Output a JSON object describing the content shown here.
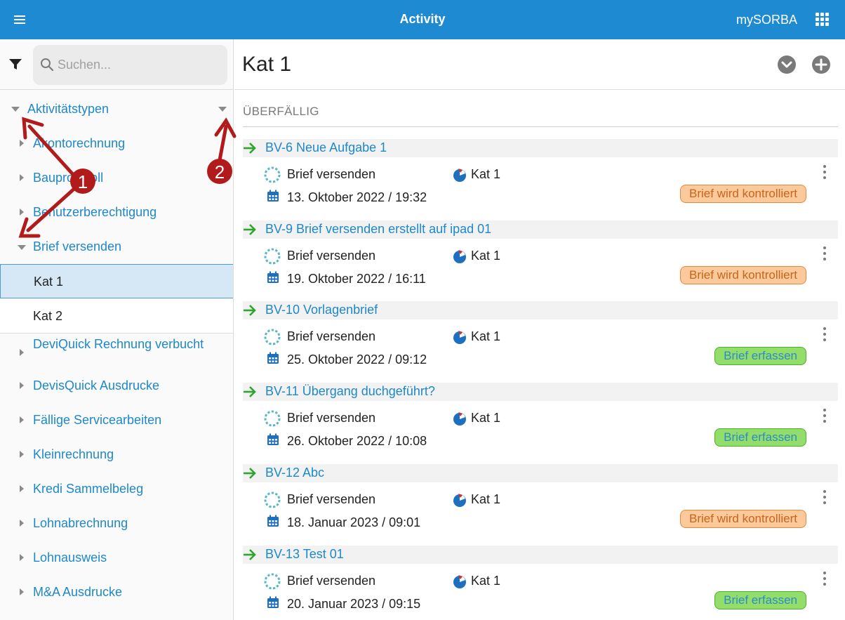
{
  "topbar": {
    "title": "Activity",
    "brand": "mySORBA",
    "menu_icon": "hamburger-icon",
    "apps_icon": "grid-icon"
  },
  "search": {
    "placeholder": "Suchen...",
    "value": ""
  },
  "tree": {
    "root": "Aktivitätstypen",
    "items": [
      {
        "label": "Akontorechnung"
      },
      {
        "label": "Bauprotokoll"
      },
      {
        "label": "Benutzerberechtigung"
      },
      {
        "label": "Brief versenden",
        "expanded": true
      },
      {
        "label": "Kat 1",
        "selected": true
      },
      {
        "label": "Kat 2"
      },
      {
        "label": "DeviQuick Rechnung verbucht"
      },
      {
        "label": "DevisQuick Ausdrucke"
      },
      {
        "label": "Fällige Servicearbeiten"
      },
      {
        "label": "Kleinrechnung"
      },
      {
        "label": "Kredi Sammelbeleg"
      },
      {
        "label": "Lohnabrechnung"
      },
      {
        "label": "Lohnausweis"
      },
      {
        "label": "M&A Ausdrucke"
      }
    ]
  },
  "annotations": {
    "marker1": "1",
    "marker2": "2",
    "color": "#b21b1b"
  },
  "main": {
    "title": "Kat 1",
    "section": "ÜBERFÄLLIG",
    "cards": [
      {
        "title": "BV-6  Neue Aufgabe 1",
        "type": "Brief versenden",
        "kat": "Kat 1",
        "date": "13. Oktober 2022 / 19:32",
        "status": "Brief wird kontrolliert",
        "status_color": "orange"
      },
      {
        "title": "BV-9  Brief versenden erstellt auf ipad 01",
        "type": "Brief versenden",
        "kat": "Kat 1",
        "date": "19. Oktober 2022 / 16:11",
        "status": "Brief wird kontrolliert",
        "status_color": "orange"
      },
      {
        "title": "BV-10  Vorlagenbrief",
        "type": "Brief versenden",
        "kat": "Kat 1",
        "date": "25. Oktober 2022 / 09:12",
        "status": "Brief erfassen",
        "status_color": "green"
      },
      {
        "title": "BV-11  Übergang duchgeführt?",
        "type": "Brief versenden",
        "kat": "Kat 1",
        "date": "26. Oktober 2022 / 10:08",
        "status": "Brief erfassen",
        "status_color": "green"
      },
      {
        "title": "BV-12  Abc",
        "type": "Brief versenden",
        "kat": "Kat 1",
        "date": "18. Januar 2023 / 09:01",
        "status": "Brief wird kontrolliert",
        "status_color": "orange"
      },
      {
        "title": "BV-13  Test 01",
        "type": "Brief versenden",
        "kat": "Kat 1",
        "date": "20. Januar 2023 / 09:15",
        "status": "Brief erfassen",
        "status_color": "green"
      }
    ]
  },
  "colors": {
    "topbar": "#1e8ad2",
    "link": "#1e88c8",
    "arrow_green": "#2ea52e",
    "annotation_red": "#b21b1b"
  }
}
